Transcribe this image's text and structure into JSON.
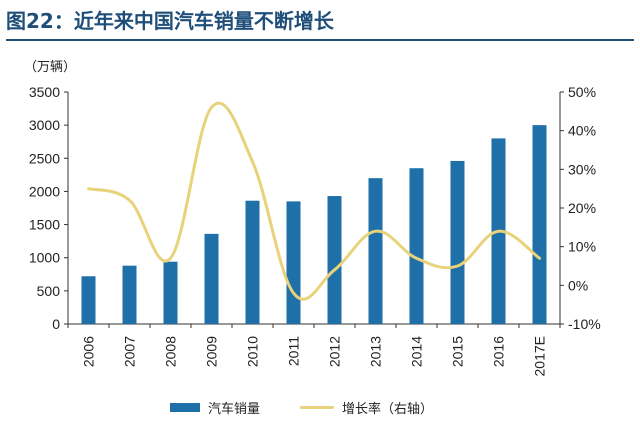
{
  "header": {
    "title": "图22：近年来中国汽车销量不断增长"
  },
  "chart_data": {
    "type": "bar",
    "categories": [
      "2006",
      "2007",
      "2008",
      "2009",
      "2010",
      "2011",
      "2012",
      "2013",
      "2014",
      "2015",
      "2016",
      "2017E"
    ],
    "series": [
      {
        "name": "汽车销量",
        "type": "bar",
        "axis": "left",
        "values": [
          720,
          880,
          940,
          1360,
          1860,
          1850,
          1930,
          2200,
          2350,
          2460,
          2800,
          3000
        ]
      },
      {
        "name": "增长率（右轴）",
        "type": "line",
        "axis": "right",
        "values": [
          25,
          22,
          7,
          46,
          32,
          -2,
          4,
          14,
          7,
          5,
          14,
          7
        ]
      }
    ],
    "y_left": {
      "unit_label": "（万辆）",
      "ylim": [
        0,
        3500
      ],
      "ticks": [
        0,
        500,
        1000,
        1500,
        2000,
        2500,
        3000,
        3500
      ]
    },
    "y_right": {
      "ylim": [
        -10,
        50
      ],
      "ticks": [
        "-10%",
        "0%",
        "10%",
        "20%",
        "30%",
        "40%",
        "50%"
      ]
    },
    "grid": false,
    "legend_position": "bottom",
    "colors": {
      "bar": "#1f6fa8",
      "line": "#e8d27a",
      "title": "#1f4e79"
    }
  }
}
